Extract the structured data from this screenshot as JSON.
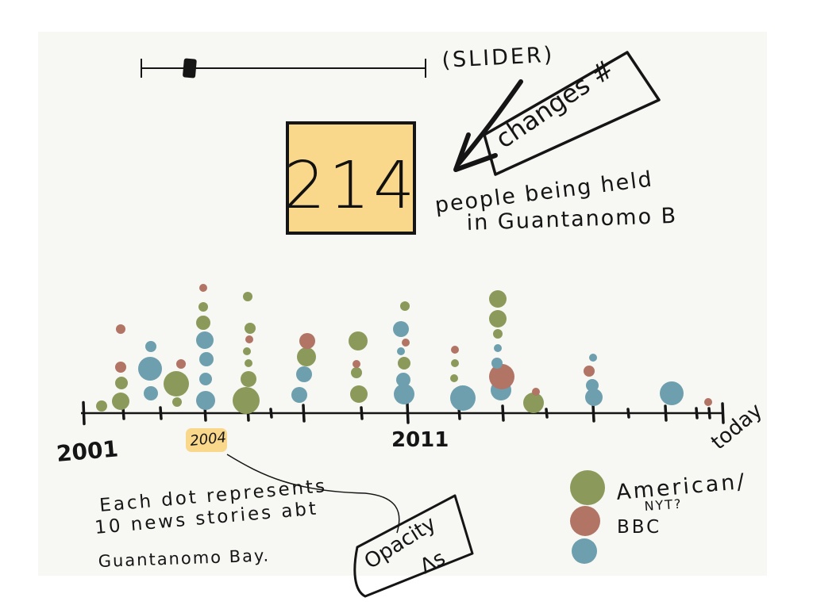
{
  "slider": {
    "label": "(SLIDER)",
    "position": 0.17
  },
  "callout_changes": "changes #",
  "counter": {
    "value": "214",
    "color": "#f9d88c",
    "caption_line1": "people being held",
    "caption_line2": "in Guantanomo B"
  },
  "timeline": {
    "start_label": "2001",
    "mid_label": "2011",
    "end_label": "today",
    "highlight_label": "2004",
    "highlight_color": "#f9d88c"
  },
  "note": {
    "line1": "Each dot represents",
    "line2": "10 news stories abt",
    "line3": "Guantanomo Bay."
  },
  "opacity_note": {
    "line1": "Opacity",
    "line2": "Δs"
  },
  "legend": {
    "items": [
      {
        "label": "American/",
        "sublabel": "NYT?",
        "color": "#8b9a5b"
      },
      {
        "label": "BBC",
        "sublabel": "",
        "color": "#b17465"
      },
      {
        "label": "",
        "sublabel": "",
        "color": "#6e9fae"
      }
    ]
  },
  "colors": {
    "american": "#8b9a5b",
    "bbc": "#b17465",
    "other": "#6e9fae",
    "ink": "#151515",
    "paper": "#f7f7f3"
  }
}
